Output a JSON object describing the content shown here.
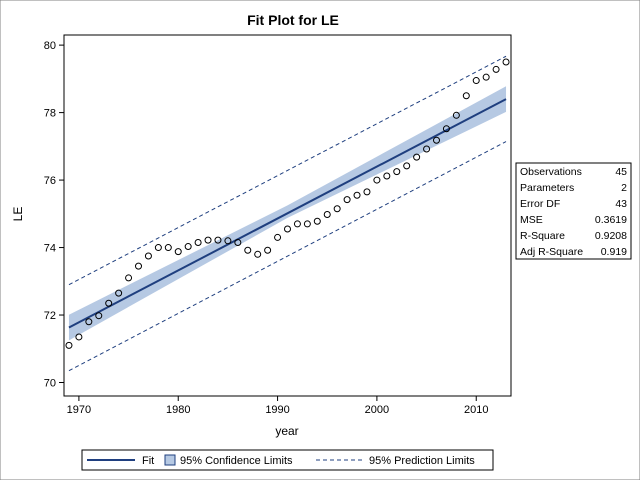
{
  "chart_data": {
    "type": "scatter",
    "title": "Fit Plot for LE",
    "xlabel": "year",
    "ylabel": "LE",
    "xlim": [
      1968.5,
      2013.5
    ],
    "ylim": [
      69.6,
      80.3
    ],
    "xticks": [
      1970,
      1980,
      1990,
      2000,
      2010
    ],
    "yticks": [
      70,
      72,
      74,
      76,
      78,
      80
    ],
    "grid": false,
    "x": [
      1969,
      1970,
      1971,
      1972,
      1973,
      1974,
      1975,
      1976,
      1977,
      1978,
      1979,
      1980,
      1981,
      1982,
      1983,
      1984,
      1985,
      1986,
      1987,
      1988,
      1989,
      1990,
      1991,
      1992,
      1993,
      1994,
      1995,
      1996,
      1997,
      1998,
      1999,
      2000,
      2001,
      2002,
      2003,
      2004,
      2005,
      2006,
      2007,
      2008,
      2009,
      2010,
      2011,
      2012,
      2013
    ],
    "y": [
      71.1,
      71.35,
      71.8,
      71.98,
      72.35,
      72.65,
      73.1,
      73.45,
      73.75,
      74.0,
      74.0,
      73.88,
      74.03,
      74.15,
      74.22,
      74.22,
      74.2,
      74.15,
      73.92,
      73.8,
      73.92,
      74.3,
      74.55,
      74.7,
      74.7,
      74.78,
      74.98,
      75.15,
      75.42,
      75.55,
      75.65,
      76.0,
      76.12,
      76.25,
      76.42,
      76.68,
      76.92,
      77.18,
      77.52,
      77.92,
      78.5,
      78.95,
      79.05,
      79.28,
      79.5
    ],
    "series": [
      {
        "name": "Fit",
        "x": [
          1969,
          2013
        ],
        "y": [
          71.63,
          78.4
        ],
        "color": "#1f3f7f"
      },
      {
        "name": "95% Confidence Limits",
        "x": [
          1969,
          1991,
          2013
        ],
        "lower": [
          71.25,
          74.88,
          78.02
        ],
        "upper": [
          72.01,
          75.25,
          78.78
        ],
        "color": "#b6c9e3"
      },
      {
        "name": "95% Prediction Limits",
        "x": [
          1969,
          2013
        ],
        "lower": [
          70.35,
          77.14
        ],
        "upper": [
          72.9,
          79.67
        ],
        "color": "#1f3f7f"
      }
    ],
    "legend_position": "bottom",
    "stats": [
      {
        "label": "Observations",
        "value": "45"
      },
      {
        "label": "Parameters",
        "value": "2"
      },
      {
        "label": "Error DF",
        "value": "43"
      },
      {
        "label": "MSE",
        "value": "0.3619"
      },
      {
        "label": "R-Square",
        "value": "0.9208"
      },
      {
        "label": "Adj R-Square",
        "value": "0.919"
      }
    ],
    "legend": [
      {
        "label": "Fit",
        "kind": "line"
      },
      {
        "label": "95% Confidence Limits",
        "kind": "band"
      },
      {
        "label": "95% Prediction Limits",
        "kind": "dashed"
      }
    ]
  }
}
